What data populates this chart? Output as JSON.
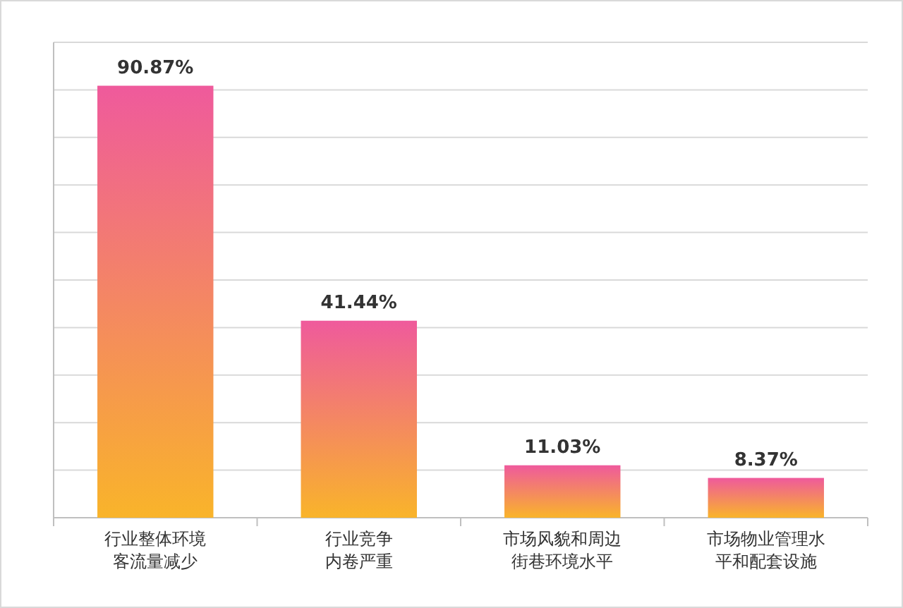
{
  "chart_data": {
    "type": "bar",
    "categories": [
      "行业整体环境客流量减少",
      "行业竞争内卷严重",
      "市场风貌和周边街巷环境水平",
      "市场物业管理水平和配套设施"
    ],
    "values": [
      90.87,
      41.44,
      11.03,
      8.37
    ],
    "value_labels": [
      "90.87%",
      "41.44%",
      "11.03%",
      "8.37%"
    ],
    "color": "#ef5a9c",
    "ylim": [
      0,
      100
    ],
    "yticks": [
      {
        "value": 0,
        "label": null
      },
      {
        "value": 10,
        "label": null
      },
      {
        "value": 20,
        "label": null
      },
      {
        "value": 30,
        "label": null
      },
      {
        "value": 40,
        "label": null
      },
      {
        "value": 50,
        "label": null
      },
      {
        "value": 60,
        "label": null
      },
      {
        "value": 70,
        "label": null
      },
      {
        "value": 80,
        "label": null
      },
      {
        "value": 90,
        "label": null
      },
      {
        "value": 100,
        "label": null
      }
    ],
    "grid": "y"
  }
}
